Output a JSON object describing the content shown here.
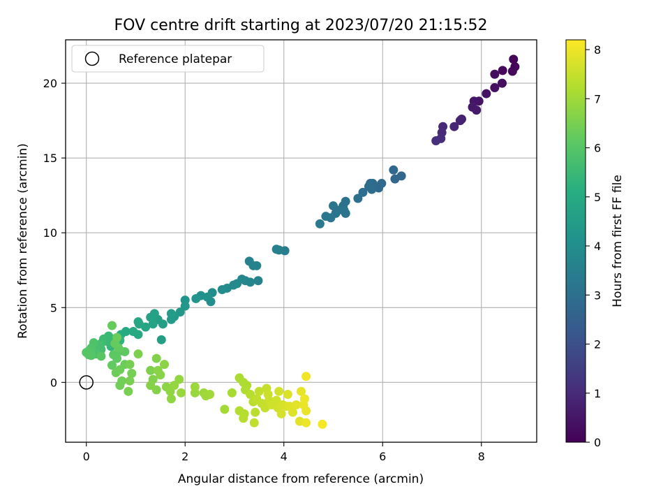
{
  "chart_data": {
    "type": "scatter",
    "title": "FOV centre drift starting at 2023/07/20 21:15:52",
    "xlabel": "Angular distance from reference (arcmin)",
    "ylabel": "Rotation from reference (arcmin)",
    "colorbar_label": "Hours from first FF file",
    "xlim": [
      -0.42,
      9.12
    ],
    "ylim": [
      -4.0,
      22.9
    ],
    "x_ticks": [
      0,
      2,
      4,
      6,
      8
    ],
    "y_ticks": [
      0,
      5,
      10,
      15,
      20
    ],
    "colorbar_range": [
      0,
      8.2
    ],
    "colorbar_ticks": [
      0,
      1,
      2,
      3,
      4,
      5,
      6,
      7,
      8
    ],
    "colormap": "viridis",
    "grid": true,
    "legend": {
      "placement": "top-left",
      "entries": [
        "Reference platepar"
      ]
    },
    "reference_point": {
      "x": 0,
      "y": 0,
      "marker": "open-circle",
      "color": "#000000"
    },
    "series": [
      {
        "points": [
          [
            8.65,
            21.6,
            0.05
          ],
          [
            8.68,
            21.1,
            0.1
          ],
          [
            8.63,
            20.8,
            0.15
          ],
          [
            8.43,
            20.85,
            0.2
          ],
          [
            8.27,
            20.6,
            0.25
          ],
          [
            8.42,
            20.0,
            0.3
          ],
          [
            8.27,
            19.7,
            0.35
          ],
          [
            8.1,
            19.3,
            0.4
          ],
          [
            7.95,
            18.8,
            0.45
          ],
          [
            7.85,
            18.8,
            0.5
          ],
          [
            7.82,
            18.4,
            0.55
          ],
          [
            7.9,
            18.2,
            0.6
          ],
          [
            7.6,
            17.6,
            0.75
          ],
          [
            7.57,
            17.5,
            0.8
          ],
          [
            7.45,
            17.1,
            0.85
          ],
          [
            7.22,
            17.1,
            0.95
          ],
          [
            7.2,
            16.7,
            1.0
          ],
          [
            7.18,
            16.3,
            1.05
          ],
          [
            7.08,
            16.15,
            1.1
          ],
          [
            6.38,
            13.8,
            2.7
          ],
          [
            6.25,
            13.6,
            2.7
          ],
          [
            6.22,
            14.2,
            2.75
          ],
          [
            5.98,
            13.3,
            2.8
          ],
          [
            5.92,
            13.0,
            2.8
          ],
          [
            5.8,
            13.3,
            2.85
          ],
          [
            5.75,
            13.3,
            2.85
          ],
          [
            5.78,
            12.9,
            2.9
          ],
          [
            5.72,
            13.1,
            2.9
          ],
          [
            5.6,
            12.7,
            2.95
          ],
          [
            5.5,
            12.3,
            3.0
          ],
          [
            5.25,
            12.1,
            3.05
          ],
          [
            5.2,
            11.8,
            3.05
          ],
          [
            5.22,
            11.5,
            3.1
          ],
          [
            5.25,
            11.3,
            3.1
          ],
          [
            5.1,
            11.5,
            3.15
          ],
          [
            5.05,
            11.3,
            3.15
          ],
          [
            5.0,
            11.8,
            3.2
          ],
          [
            4.95,
            11.0,
            3.2
          ],
          [
            4.85,
            11.1,
            3.25
          ],
          [
            4.73,
            10.6,
            3.3
          ],
          [
            4.02,
            8.8,
            3.45
          ],
          [
            3.9,
            8.85,
            3.5
          ],
          [
            3.85,
            8.9,
            3.55
          ],
          [
            3.45,
            7.8,
            3.6
          ],
          [
            3.38,
            7.8,
            3.6
          ],
          [
            3.48,
            6.8,
            3.65
          ],
          [
            3.3,
            8.1,
            3.65
          ],
          [
            3.32,
            6.7,
            3.7
          ],
          [
            3.22,
            6.8,
            3.7
          ],
          [
            3.15,
            6.9,
            3.75
          ],
          [
            3.05,
            6.6,
            3.8
          ],
          [
            2.98,
            6.5,
            3.85
          ],
          [
            2.85,
            6.3,
            3.9
          ],
          [
            2.75,
            6.2,
            3.95
          ],
          [
            2.55,
            6.0,
            4.0
          ],
          [
            2.52,
            5.4,
            4.05
          ],
          [
            2.45,
            5.7,
            4.1
          ],
          [
            2.32,
            5.8,
            4.15
          ],
          [
            2.22,
            5.6,
            4.2
          ],
          [
            2.0,
            5.5,
            4.25
          ],
          [
            2.0,
            5.1,
            4.3
          ],
          [
            1.9,
            4.7,
            4.35
          ],
          [
            1.78,
            4.4,
            4.4
          ],
          [
            1.72,
            4.2,
            4.45
          ],
          [
            1.72,
            4.6,
            4.5
          ],
          [
            1.55,
            3.9,
            4.55
          ],
          [
            1.52,
            2.85,
            4.6
          ],
          [
            1.45,
            4.2,
            4.6
          ],
          [
            1.38,
            4.6,
            4.65
          ],
          [
            1.3,
            4.35,
            4.7
          ],
          [
            1.35,
            3.9,
            4.75
          ],
          [
            1.2,
            3.7,
            4.8
          ],
          [
            1.07,
            3.9,
            4.85
          ],
          [
            1.05,
            4.05,
            4.85
          ],
          [
            1.05,
            3.2,
            4.9
          ],
          [
            0.95,
            3.4,
            4.95
          ],
          [
            0.8,
            3.4,
            5.0
          ],
          [
            0.7,
            3.2,
            5.05
          ],
          [
            0.68,
            2.8,
            5.3
          ],
          [
            0.55,
            2.9,
            5.35
          ],
          [
            0.5,
            2.4,
            5.4
          ],
          [
            0.45,
            2.7,
            5.45
          ],
          [
            0.45,
            3.1,
            5.5
          ],
          [
            0.35,
            2.9,
            5.55
          ],
          [
            0.3,
            2.6,
            5.6
          ],
          [
            0.3,
            2.2,
            5.65
          ],
          [
            0.25,
            2.5,
            5.7
          ],
          [
            0.2,
            2.4,
            5.75
          ],
          [
            0.2,
            1.9,
            5.8
          ],
          [
            0.15,
            2.65,
            5.85
          ],
          [
            0.1,
            2.3,
            5.9
          ],
          [
            0.05,
            2.1,
            5.95
          ],
          [
            0.05,
            1.85,
            5.95
          ],
          [
            0.0,
            2.0,
            6.0
          ],
          [
            0.1,
            1.8,
            6.0
          ],
          [
            0.3,
            1.75,
            6.05
          ],
          [
            0.55,
            1.85,
            6.1
          ],
          [
            0.7,
            2.1,
            6.1
          ],
          [
            0.78,
            2.05,
            6.15
          ],
          [
            0.62,
            1.6,
            6.15
          ],
          [
            0.52,
            1.15,
            6.2
          ],
          [
            0.65,
            2.3,
            6.2
          ],
          [
            0.58,
            2.6,
            6.25
          ],
          [
            0.52,
            3.8,
            6.25
          ],
          [
            0.62,
            3.0,
            6.3
          ],
          [
            0.78,
            1.2,
            6.3
          ],
          [
            0.68,
            0.85,
            6.35
          ],
          [
            0.6,
            0.65,
            6.35
          ],
          [
            0.72,
            0.1,
            6.4
          ],
          [
            0.68,
            -0.2,
            6.4
          ],
          [
            0.88,
            1.2,
            6.45
          ],
          [
            0.92,
            0.6,
            6.45
          ],
          [
            0.88,
            0.1,
            6.5
          ],
          [
            0.85,
            -0.6,
            6.5
          ],
          [
            1.05,
            1.9,
            6.55
          ],
          [
            1.3,
            0.8,
            6.55
          ],
          [
            1.42,
            1.6,
            6.6
          ],
          [
            1.35,
            0.2,
            6.6
          ],
          [
            1.3,
            -0.2,
            6.65
          ],
          [
            1.42,
            -0.5,
            6.65
          ],
          [
            1.5,
            0.5,
            6.7
          ],
          [
            1.45,
            0.8,
            6.7
          ],
          [
            1.58,
            1.2,
            6.75
          ],
          [
            1.62,
            -0.3,
            6.75
          ],
          [
            1.7,
            -0.6,
            6.8
          ],
          [
            1.72,
            -1.1,
            6.8
          ],
          [
            1.78,
            -0.2,
            6.85
          ],
          [
            1.88,
            0.2,
            6.85
          ],
          [
            1.92,
            -0.7,
            6.9
          ],
          [
            2.2,
            -0.7,
            6.9
          ],
          [
            2.2,
            -0.3,
            6.95
          ],
          [
            2.38,
            -0.7,
            6.95
          ],
          [
            2.42,
            -0.9,
            7.0
          ],
          [
            2.5,
            -0.8,
            7.0
          ],
          [
            2.8,
            -1.8,
            7.05
          ],
          [
            2.95,
            -0.7,
            7.1
          ],
          [
            3.1,
            0.3,
            7.15
          ],
          [
            3.18,
            0.0,
            7.15
          ],
          [
            3.22,
            -0.5,
            7.2
          ],
          [
            3.25,
            -0.2,
            7.2
          ],
          [
            3.1,
            -1.9,
            7.25
          ],
          [
            3.2,
            -2.1,
            7.25
          ],
          [
            3.18,
            -2.4,
            7.3
          ],
          [
            3.32,
            -0.8,
            7.3
          ],
          [
            3.38,
            -1.3,
            7.35
          ],
          [
            3.42,
            -2.0,
            7.35
          ],
          [
            3.45,
            -1.1,
            7.4
          ],
          [
            3.4,
            -2.7,
            7.4
          ],
          [
            3.5,
            -0.6,
            7.45
          ],
          [
            3.55,
            -1.4,
            7.45
          ],
          [
            3.62,
            -1.7,
            7.5
          ],
          [
            3.65,
            -0.4,
            7.5
          ],
          [
            3.68,
            -0.8,
            7.55
          ],
          [
            3.7,
            -1.2,
            7.55
          ],
          [
            3.75,
            -1.5,
            7.6
          ],
          [
            3.85,
            -1.2,
            7.6
          ],
          [
            3.88,
            -1.7,
            7.65
          ],
          [
            3.9,
            -0.6,
            7.65
          ],
          [
            3.95,
            -2.1,
            7.7
          ],
          [
            3.98,
            -1.5,
            7.7
          ],
          [
            4.05,
            -1.6,
            7.75
          ],
          [
            4.08,
            -0.8,
            7.75
          ],
          [
            4.12,
            -1.6,
            7.8
          ],
          [
            4.18,
            -2.0,
            7.8
          ],
          [
            4.25,
            -1.5,
            7.85
          ],
          [
            4.32,
            -2.6,
            7.85
          ],
          [
            4.35,
            -0.6,
            7.9
          ],
          [
            4.4,
            -1.5,
            7.95
          ],
          [
            4.45,
            -1.9,
            7.95
          ],
          [
            4.45,
            -2.7,
            8.0
          ],
          [
            4.42,
            -1.1,
            8.0
          ],
          [
            4.45,
            0.4,
            8.05
          ],
          [
            4.78,
            -2.8,
            8.1
          ]
        ]
      }
    ]
  }
}
